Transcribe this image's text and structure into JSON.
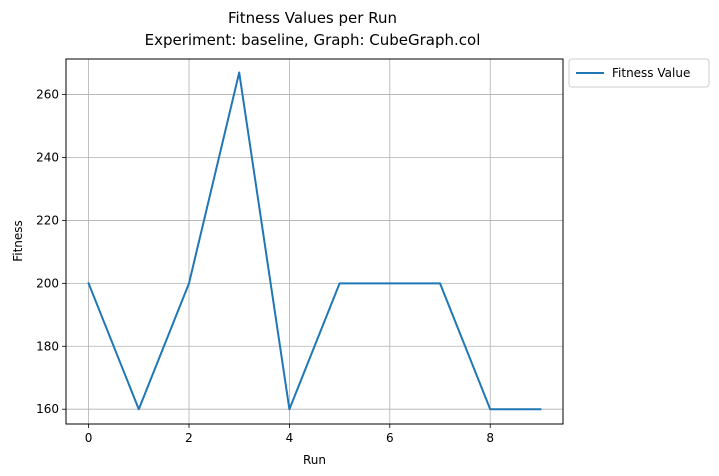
{
  "chart_data": {
    "type": "line",
    "title": "Fitness Values per Run",
    "subtitle": "Experiment: baseline, Graph: CubeGraph.col",
    "xlabel": "Run",
    "ylabel": "Fitness",
    "xlim": [
      -0.45,
      9.45
    ],
    "ylim": [
      155.3,
      271.3
    ],
    "xticks": [
      0,
      2,
      4,
      6,
      8
    ],
    "yticks": [
      160,
      180,
      200,
      220,
      240,
      260
    ],
    "grid": true,
    "legend_position": "outside upper right",
    "x": [
      0,
      1,
      2,
      3,
      4,
      5,
      6,
      7,
      8,
      9
    ],
    "series": [
      {
        "name": "Fitness Value",
        "color": "#1f77b4",
        "values": [
          200,
          160,
          200,
          267,
          160,
          200,
          200,
          200,
          160,
          160
        ]
      }
    ]
  }
}
